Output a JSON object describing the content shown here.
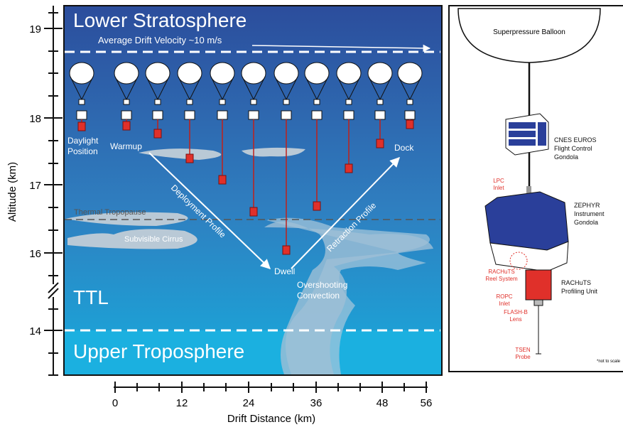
{
  "y_axis": {
    "title": "Altitude (km)",
    "ticks": [
      19,
      18,
      17,
      16,
      14
    ]
  },
  "x_axis": {
    "title": "Drift Distance (km)",
    "ticks": [
      0,
      12,
      24,
      36,
      48,
      56
    ]
  },
  "left_panel": {
    "regions": [
      "Lower Stratosphere",
      "TTL",
      "Upper Troposphere"
    ],
    "drift_velocity": "Average Drift Velocity ~10 m/s",
    "daylight_position": [
      "Daylight",
      "Position"
    ],
    "warmup": "Warmup",
    "deployment_profile": "Deployment Profile",
    "dwell": "Dwell",
    "retraction_profile": "Retraction Profile",
    "dock": "Dock",
    "thermal_tropopause": "Thermal Tropopause",
    "subvisible_cirrus": "Subvisible Cirrus",
    "overshooting_convection": [
      "Overshooting",
      "Convection"
    ]
  },
  "right_panel": {
    "balloon": "Superpressure Balloon",
    "flight_control": [
      "CNES EUROS",
      "Flight Control",
      "Gondola"
    ],
    "instrument": [
      "ZEPHYR",
      "Instrument",
      "Gondola"
    ],
    "profiling_unit": [
      "RACHuTS",
      "Profiling Unit"
    ],
    "lpc_inlet": [
      "LPC",
      "Inlet"
    ],
    "reel_system": [
      "RACHuTS",
      "Reel System"
    ],
    "ropc_inlet": [
      "ROPC",
      "Inlet"
    ],
    "flash_lens": [
      "FLASH-B",
      "Lens"
    ],
    "tsen_probe": [
      "TSEN",
      "Probe"
    ],
    "note": "*not to scale"
  }
}
